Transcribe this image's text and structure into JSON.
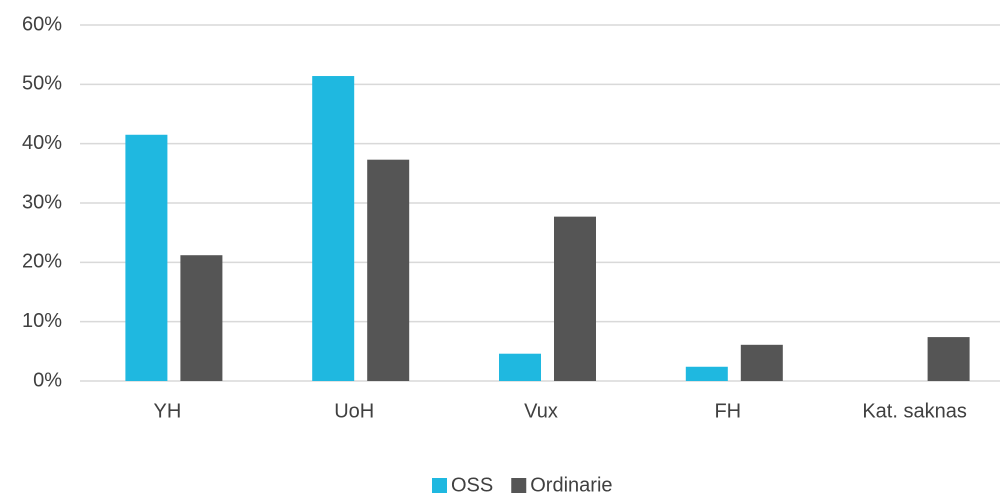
{
  "chart_data": {
    "type": "bar",
    "categories": [
      "YH",
      "UoH",
      "Vux",
      "FH",
      "Kat. saknas"
    ],
    "series": [
      {
        "name": "OSS",
        "color": "#1fb8e0",
        "values": [
          41.5,
          51.4,
          4.6,
          2.4,
          0
        ]
      },
      {
        "name": "Ordinarie",
        "color": "#555555",
        "values": [
          21.2,
          37.3,
          27.7,
          6.1,
          7.4
        ]
      }
    ],
    "ylim": [
      0,
      60
    ],
    "yticks": [
      {
        "value": 0,
        "label": "0%"
      },
      {
        "value": 10,
        "label": "10%"
      },
      {
        "value": 20,
        "label": "20%"
      },
      {
        "value": 30,
        "label": "30%"
      },
      {
        "value": 40,
        "label": "40%"
      },
      {
        "value": 50,
        "label": "50%"
      },
      {
        "value": 60,
        "label": "60%"
      }
    ],
    "grid": true,
    "legend": "bottom"
  }
}
